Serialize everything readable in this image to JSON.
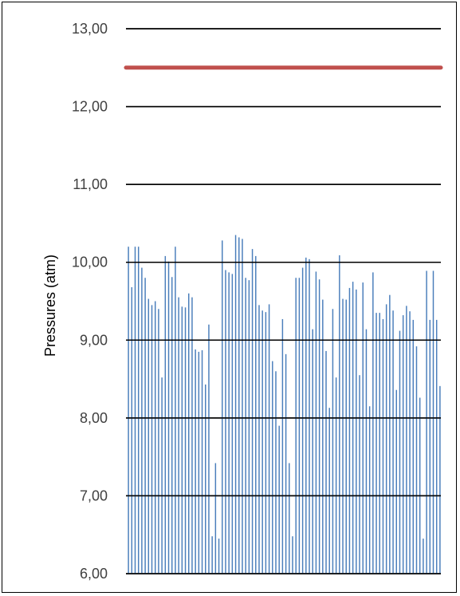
{
  "chart_data": {
    "type": "bar",
    "ylabel": "Pressures (atm)",
    "ylim": [
      6,
      13
    ],
    "yticks": [
      "6,00",
      "7,00",
      "8,00",
      "9,00",
      "10,00",
      "11,00",
      "12,00",
      "13,00"
    ],
    "grid": true,
    "series_color": "#4a7ebb",
    "limit_line": {
      "value": 12.5,
      "color": "#c0504d"
    },
    "values": [
      10.2,
      9.68,
      10.2,
      10.2,
      9.93,
      9.8,
      9.53,
      9.45,
      9.5,
      9.4,
      8.52,
      10.08,
      10.01,
      9.81,
      10.2,
      9.55,
      9.43,
      9.42,
      9.6,
      9.55,
      8.88,
      8.85,
      8.87,
      8.43,
      9.2,
      6.48,
      7.42,
      6.45,
      10.28,
      9.9,
      9.87,
      9.85,
      10.35,
      10.32,
      10.3,
      9.8,
      9.77,
      10.17,
      10.08,
      9.45,
      9.38,
      9.36,
      9.46,
      8.73,
      8.6,
      7.9,
      9.27,
      8.82,
      7.42,
      6.48,
      9.8,
      9.8,
      9.93,
      10.06,
      10.04,
      9.14,
      9.88,
      9.78,
      9.52,
      8.86,
      8.13,
      9.4,
      8.52,
      10.09,
      9.53,
      9.52,
      9.67,
      9.75,
      9.65,
      8.55,
      9.74,
      9.14,
      8.15,
      9.87,
      9.35,
      9.35,
      9.27,
      9.46,
      9.58,
      9.38,
      8.36,
      9.12,
      9.32,
      9.44,
      9.37,
      9.26,
      8.92,
      8.26,
      6.45,
      9.89,
      9.26,
      9.89,
      9.26,
      8.41
    ]
  }
}
